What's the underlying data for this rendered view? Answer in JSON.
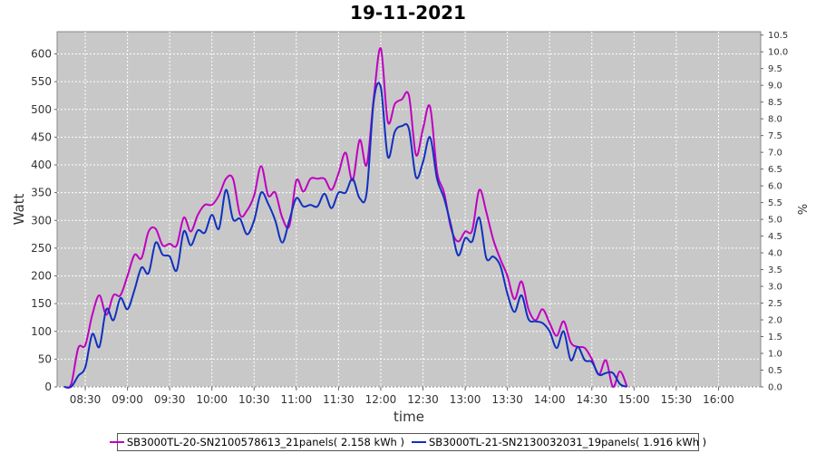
{
  "chart_data": {
    "type": "line",
    "title": "19-11-2021",
    "xlabel": "time",
    "ylabel": "Watt",
    "y2label": "%",
    "ylim": [
      0,
      640
    ],
    "y2lim": [
      0,
      10.6
    ],
    "yticks": [
      "0",
      "50",
      "100",
      "150",
      "200",
      "250",
      "300",
      "350",
      "400",
      "450",
      "500",
      "550",
      "600"
    ],
    "y2ticks": [
      "0.0",
      "0.5",
      "1.0",
      "1.5",
      "2.0",
      "2.5",
      "3.0",
      "3.5",
      "4.0",
      "4.5",
      "5.0",
      "5.5",
      "6.0",
      "6.5",
      "7.0",
      "7.5",
      "8.0",
      "8.5",
      "9.0",
      "9.5",
      "10.0",
      "10.5"
    ],
    "xticks": [
      "08:30",
      "09:00",
      "09:30",
      "10:00",
      "10:30",
      "11:00",
      "11:30",
      "12:00",
      "12:30",
      "13:00",
      "13:30",
      "14:00",
      "14:30",
      "15:00",
      "15:30",
      "16:00"
    ],
    "xlim": [
      "08:10",
      "16:30"
    ],
    "grid": true,
    "legend_position": "bottom",
    "series": [
      {
        "name": "SB3000TL-20-SN2100578613_21panels( 2.158 kWh )",
        "color": "#c000c0",
        "points": [
          [
            "08:15",
            0
          ],
          [
            "08:20",
            5
          ],
          [
            "08:25",
            70
          ],
          [
            "08:30",
            75
          ],
          [
            "08:35",
            130
          ],
          [
            "08:40",
            165
          ],
          [
            "08:45",
            130
          ],
          [
            "08:50",
            165
          ],
          [
            "08:55",
            165
          ],
          [
            "09:00",
            200
          ],
          [
            "09:05",
            238
          ],
          [
            "09:10",
            232
          ],
          [
            "09:15",
            280
          ],
          [
            "09:20",
            285
          ],
          [
            "09:25",
            255
          ],
          [
            "09:30",
            258
          ],
          [
            "09:35",
            255
          ],
          [
            "09:40",
            305
          ],
          [
            "09:45",
            280
          ],
          [
            "09:50",
            310
          ],
          [
            "09:55",
            328
          ],
          [
            "10:00",
            328
          ],
          [
            "10:05",
            345
          ],
          [
            "10:10",
            375
          ],
          [
            "10:15",
            375
          ],
          [
            "10:20",
            310
          ],
          [
            "10:25",
            318
          ],
          [
            "10:30",
            345
          ],
          [
            "10:35",
            398
          ],
          [
            "10:40",
            345
          ],
          [
            "10:45",
            350
          ],
          [
            "10:50",
            305
          ],
          [
            "10:55",
            290
          ],
          [
            "11:00",
            372
          ],
          [
            "11:05",
            352
          ],
          [
            "11:10",
            375
          ],
          [
            "11:15",
            375
          ],
          [
            "11:20",
            375
          ],
          [
            "11:25",
            355
          ],
          [
            "11:30",
            385
          ],
          [
            "11:35",
            422
          ],
          [
            "11:40",
            372
          ],
          [
            "11:45",
            445
          ],
          [
            "11:50",
            400
          ],
          [
            "11:55",
            520
          ],
          [
            "12:00",
            610
          ],
          [
            "12:05",
            478
          ],
          [
            "12:10",
            510
          ],
          [
            "12:15",
            518
          ],
          [
            "12:20",
            525
          ],
          [
            "12:25",
            418
          ],
          [
            "12:30",
            465
          ],
          [
            "12:35",
            505
          ],
          [
            "12:40",
            388
          ],
          [
            "12:45",
            350
          ],
          [
            "12:50",
            285
          ],
          [
            "12:55",
            262
          ],
          [
            "13:00",
            280
          ],
          [
            "13:05",
            282
          ],
          [
            "13:10",
            355
          ],
          [
            "13:15",
            315
          ],
          [
            "13:20",
            265
          ],
          [
            "13:25",
            230
          ],
          [
            "13:30",
            200
          ],
          [
            "13:35",
            158
          ],
          [
            "13:40",
            190
          ],
          [
            "13:45",
            140
          ],
          [
            "13:50",
            120
          ],
          [
            "13:55",
            140
          ],
          [
            "14:00",
            115
          ],
          [
            "14:05",
            92
          ],
          [
            "14:10",
            118
          ],
          [
            "14:15",
            80
          ],
          [
            "14:20",
            72
          ],
          [
            "14:25",
            70
          ],
          [
            "14:30",
            50
          ],
          [
            "14:35",
            22
          ],
          [
            "14:40",
            48
          ],
          [
            "14:45",
            0
          ],
          [
            "14:50",
            28
          ],
          [
            "14:55",
            0
          ]
        ]
      },
      {
        "name": "SB3000TL-21-SN2130032031_19panels( 1.916 kWh )",
        "color": "#1030c0",
        "points": [
          [
            "08:15",
            0
          ],
          [
            "08:20",
            0
          ],
          [
            "08:25",
            20
          ],
          [
            "08:30",
            35
          ],
          [
            "08:35",
            95
          ],
          [
            "08:40",
            72
          ],
          [
            "08:45",
            140
          ],
          [
            "08:50",
            120
          ],
          [
            "08:55",
            160
          ],
          [
            "09:00",
            140
          ],
          [
            "09:05",
            175
          ],
          [
            "09:10",
            215
          ],
          [
            "09:15",
            205
          ],
          [
            "09:20",
            260
          ],
          [
            "09:25",
            238
          ],
          [
            "09:30",
            235
          ],
          [
            "09:35",
            210
          ],
          [
            "09:40",
            280
          ],
          [
            "09:45",
            255
          ],
          [
            "09:50",
            282
          ],
          [
            "09:55",
            278
          ],
          [
            "10:00",
            310
          ],
          [
            "10:05",
            285
          ],
          [
            "10:10",
            355
          ],
          [
            "10:15",
            302
          ],
          [
            "10:20",
            303
          ],
          [
            "10:25",
            275
          ],
          [
            "10:30",
            300
          ],
          [
            "10:35",
            350
          ],
          [
            "10:40",
            330
          ],
          [
            "10:45",
            300
          ],
          [
            "10:50",
            260
          ],
          [
            "10:55",
            300
          ],
          [
            "11:00",
            340
          ],
          [
            "11:05",
            325
          ],
          [
            "11:10",
            328
          ],
          [
            "11:15",
            325
          ],
          [
            "11:20",
            348
          ],
          [
            "11:25",
            322
          ],
          [
            "11:30",
            350
          ],
          [
            "11:35",
            350
          ],
          [
            "11:40",
            375
          ],
          [
            "11:45",
            340
          ],
          [
            "11:50",
            350
          ],
          [
            "11:55",
            515
          ],
          [
            "12:00",
            540
          ],
          [
            "12:05",
            415
          ],
          [
            "12:10",
            460
          ],
          [
            "12:15",
            470
          ],
          [
            "12:20",
            465
          ],
          [
            "12:25",
            378
          ],
          [
            "12:30",
            405
          ],
          [
            "12:35",
            450
          ],
          [
            "12:40",
            375
          ],
          [
            "12:45",
            340
          ],
          [
            "12:50",
            290
          ],
          [
            "12:55",
            237
          ],
          [
            "13:00",
            268
          ],
          [
            "13:05",
            262
          ],
          [
            "13:10",
            305
          ],
          [
            "13:15",
            232
          ],
          [
            "13:20",
            235
          ],
          [
            "13:25",
            218
          ],
          [
            "13:30",
            168
          ],
          [
            "13:35",
            135
          ],
          [
            "13:40",
            165
          ],
          [
            "13:45",
            122
          ],
          [
            "13:50",
            118
          ],
          [
            "13:55",
            115
          ],
          [
            "14:00",
            100
          ],
          [
            "14:05",
            70
          ],
          [
            "14:10",
            100
          ],
          [
            "14:15",
            48
          ],
          [
            "14:20",
            72
          ],
          [
            "14:25",
            48
          ],
          [
            "14:30",
            45
          ],
          [
            "14:35",
            22
          ],
          [
            "14:40",
            25
          ],
          [
            "14:45",
            25
          ],
          [
            "14:50",
            5
          ],
          [
            "14:55",
            0
          ]
        ]
      }
    ]
  }
}
